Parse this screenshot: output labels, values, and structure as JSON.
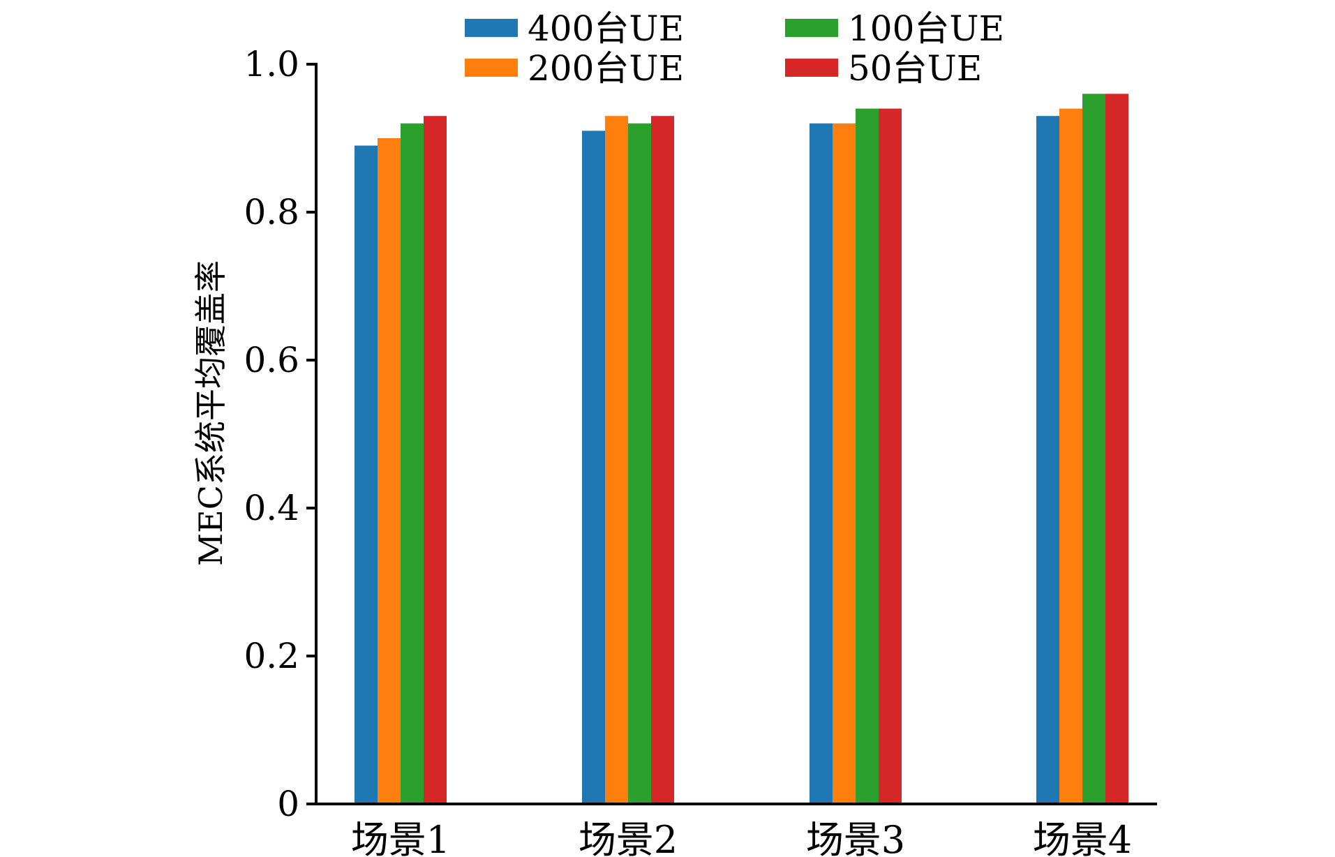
{
  "chart_data": {
    "type": "bar",
    "title": "",
    "xlabel": "",
    "ylabel": "MEC系统平均覆盖率",
    "ylim": [
      0,
      1.0
    ],
    "yticks": [
      0,
      0.2,
      0.4,
      0.6,
      0.8,
      1.0
    ],
    "ytick_labels": [
      "0",
      "0.2",
      "0.4",
      "0.6",
      "0.8",
      "1.0"
    ],
    "categories": [
      "场景1",
      "场景2",
      "场景3",
      "场景4"
    ],
    "series": [
      {
        "name": "400台UE",
        "color": "#1f77b4",
        "values": [
          0.89,
          0.91,
          0.92,
          0.93
        ]
      },
      {
        "name": "200台UE",
        "color": "#ff7f0e",
        "values": [
          0.9,
          0.93,
          0.92,
          0.94
        ]
      },
      {
        "name": "100台UE",
        "color": "#2ca02c",
        "values": [
          0.92,
          0.92,
          0.94,
          0.96
        ]
      },
      {
        "name": "50台UE",
        "color": "#d62728",
        "values": [
          0.93,
          0.93,
          0.94,
          0.96
        ]
      }
    ],
    "legend_position": "top",
    "grid": false
  }
}
